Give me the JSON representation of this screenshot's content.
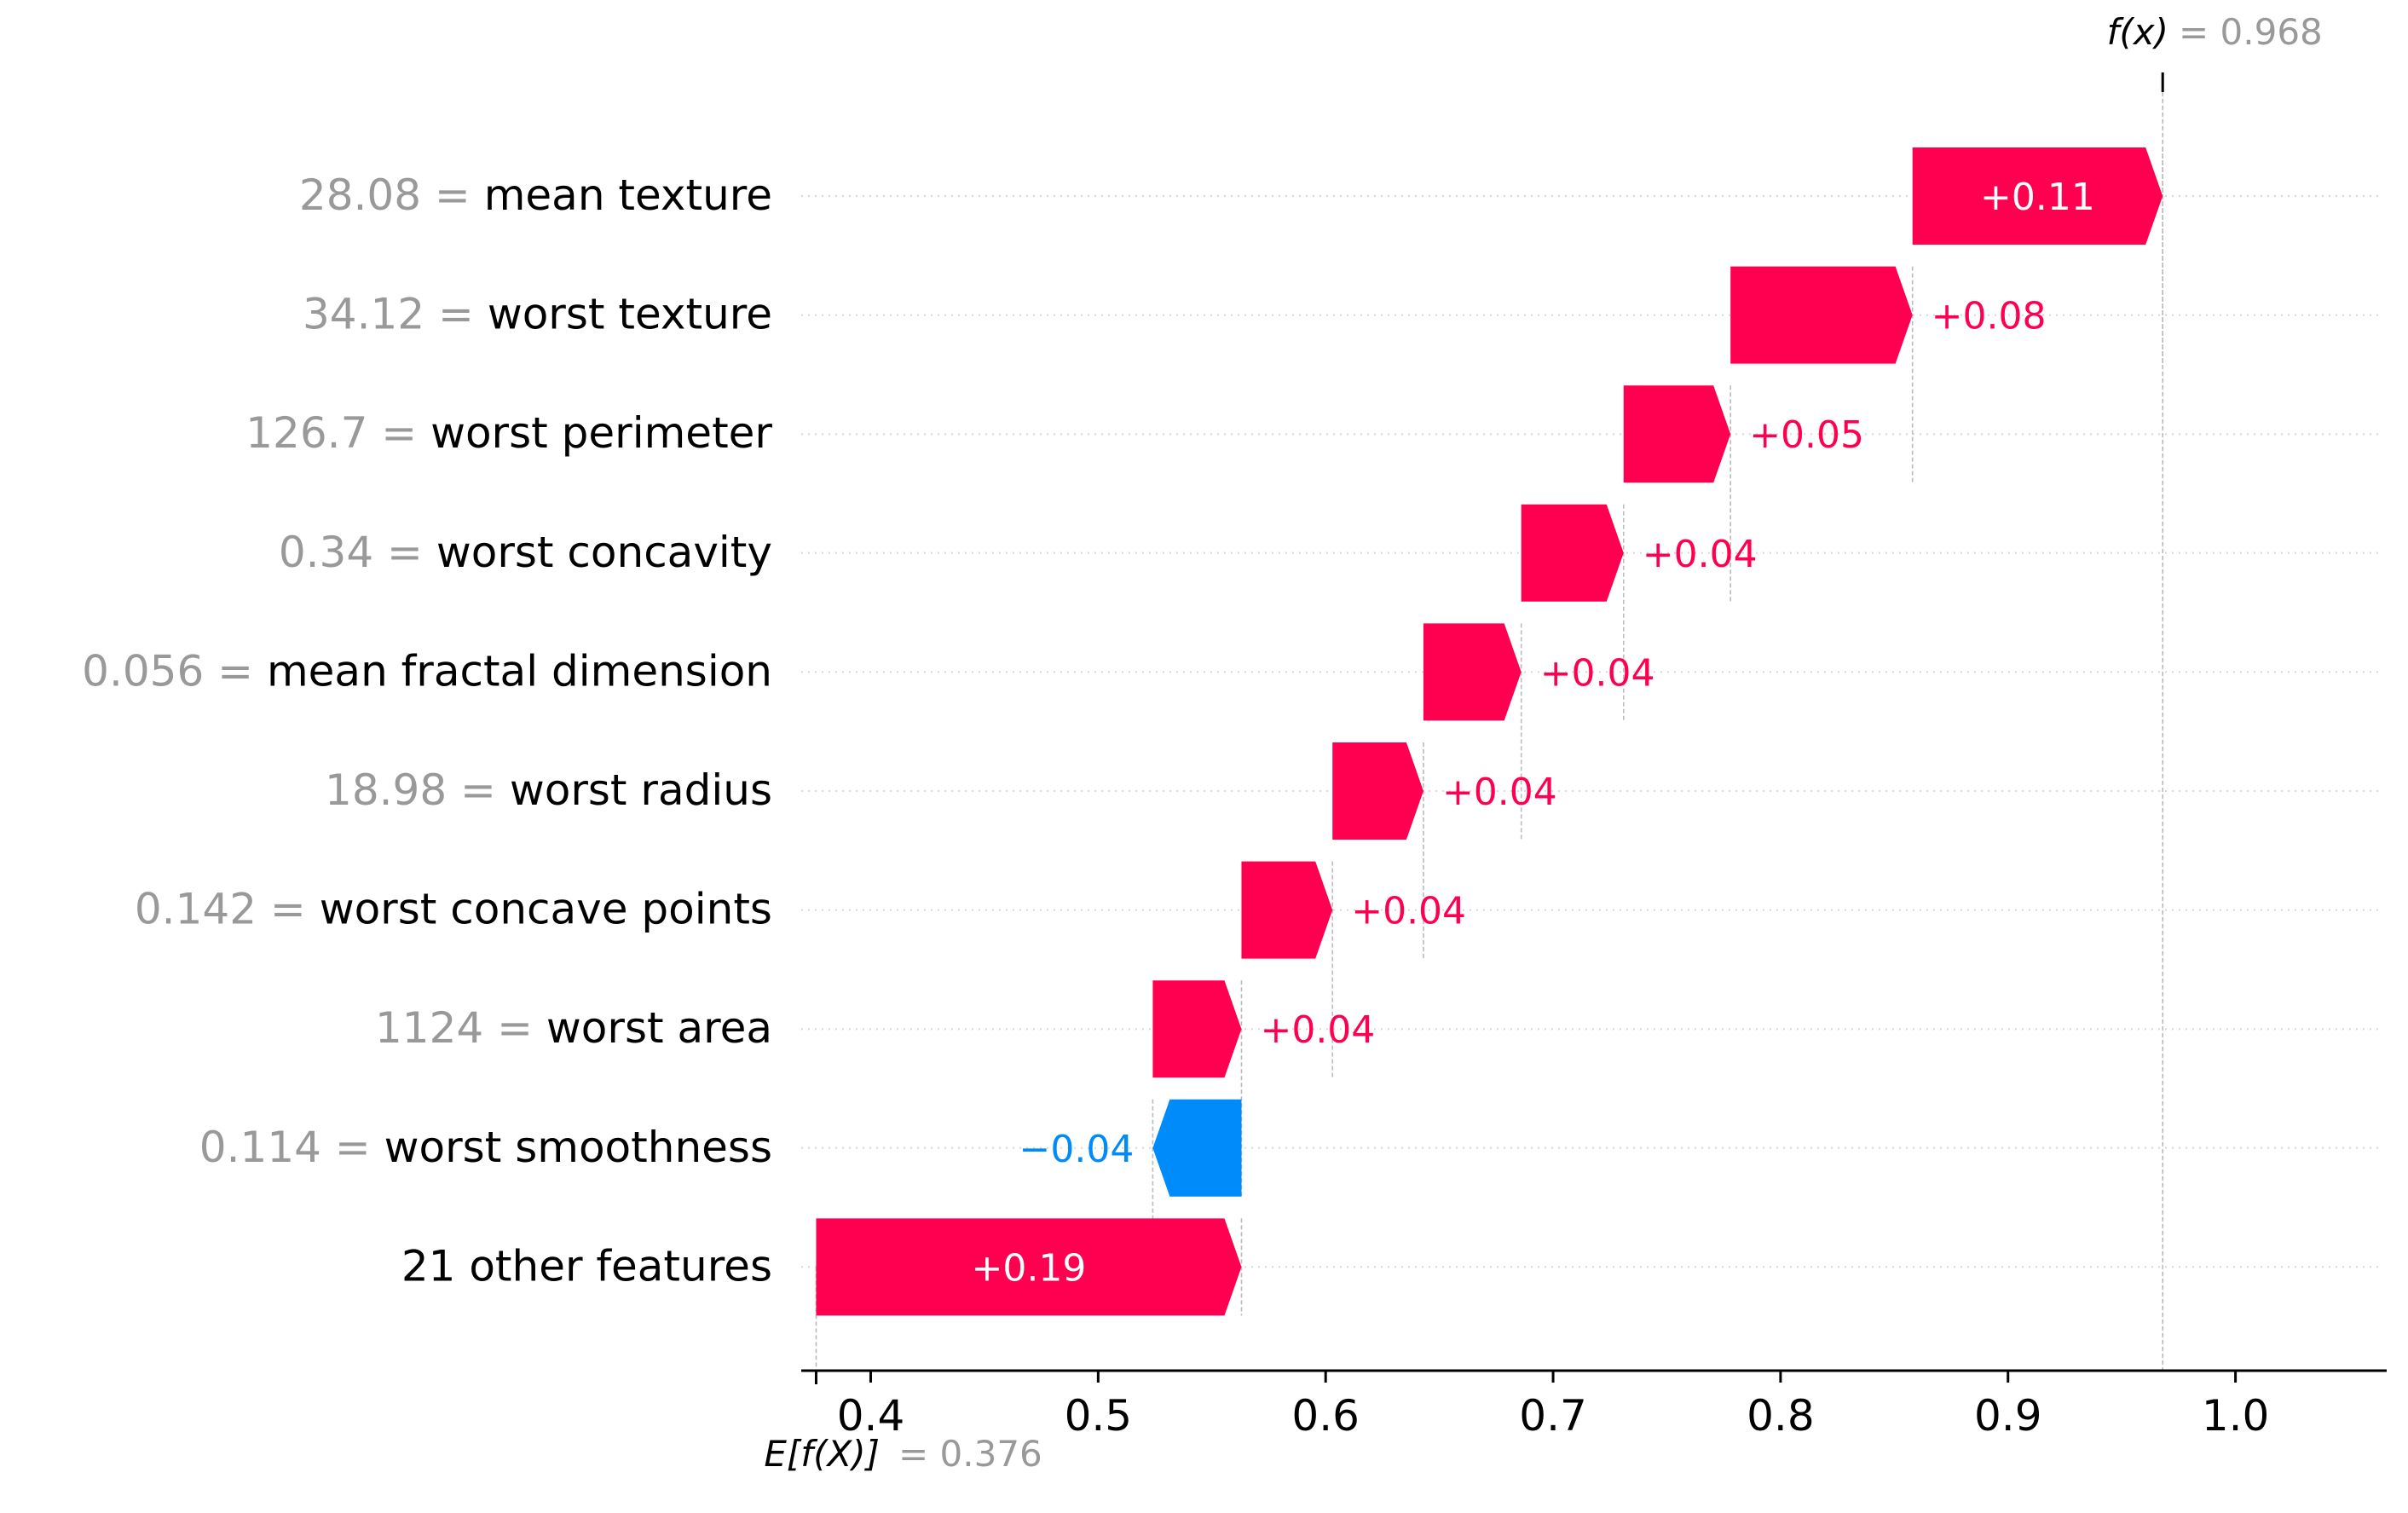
{
  "chart_data": {
    "type": "waterfall",
    "base_value": {
      "label_symbol": "E[f(X)]",
      "value_text": "= 0.376",
      "value": 0.376
    },
    "output_value": {
      "label_symbol": "f(x)",
      "value_text": "= 0.968",
      "value": 0.968
    },
    "features": [
      {
        "feature_value": "28.08",
        "name": "mean texture",
        "start": 0.858,
        "end": 0.968,
        "contribution": 0.11,
        "label": "+0.11"
      },
      {
        "feature_value": "34.12",
        "name": "worst texture",
        "start": 0.778,
        "end": 0.858,
        "contribution": 0.08,
        "label": "+0.08"
      },
      {
        "feature_value": "126.7",
        "name": "worst perimeter",
        "start": 0.731,
        "end": 0.778,
        "contribution": 0.05,
        "label": "+0.05"
      },
      {
        "feature_value": "0.34",
        "name": "worst concavity",
        "start": 0.686,
        "end": 0.731,
        "contribution": 0.04,
        "label": "+0.04"
      },
      {
        "feature_value": "0.056",
        "name": "mean fractal dimension",
        "start": 0.643,
        "end": 0.686,
        "contribution": 0.04,
        "label": "+0.04"
      },
      {
        "feature_value": "18.98",
        "name": "worst radius",
        "start": 0.603,
        "end": 0.643,
        "contribution": 0.04,
        "label": "+0.04"
      },
      {
        "feature_value": "0.142",
        "name": "worst concave points",
        "start": 0.563,
        "end": 0.603,
        "contribution": 0.04,
        "label": "+0.04"
      },
      {
        "feature_value": "1124",
        "name": "worst area",
        "start": 0.524,
        "end": 0.563,
        "contribution": 0.04,
        "label": "+0.04"
      },
      {
        "feature_value": "0.114",
        "name": "worst smoothness",
        "start": 0.563,
        "end": 0.524,
        "contribution": -0.04,
        "label": "−0.04"
      },
      {
        "feature_value": "",
        "name": "21 other features",
        "start": 0.376,
        "end": 0.563,
        "contribution": 0.19,
        "label": "+0.19"
      }
    ],
    "xticks": [
      "0.4",
      "0.5",
      "0.6",
      "0.7",
      "0.8",
      "0.9",
      "1.0"
    ],
    "xlim": [
      0.373,
      1.067
    ],
    "grid": "dotted horizontal row lines",
    "colors": {
      "positive": "#ff0051",
      "negative": "#008bfb",
      "muted_text": "#999999",
      "text": "#000000",
      "guide": "#bbbbbb"
    }
  }
}
